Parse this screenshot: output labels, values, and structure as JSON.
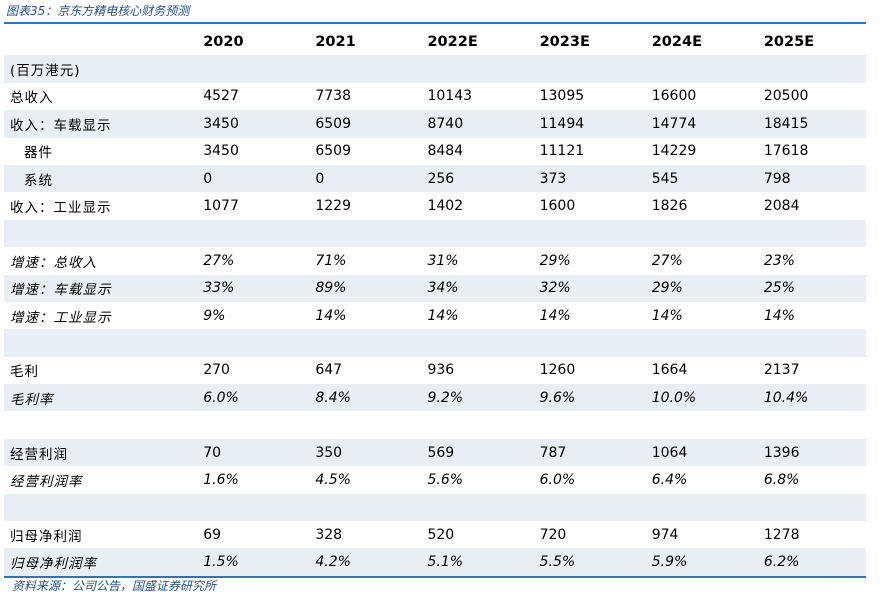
{
  "caption": "图表35：京东方精电核心财务预测",
  "source": "资料来源：公司公告，国盛证券研究所",
  "table": {
    "header": [
      "",
      "2020",
      "2021",
      "2022E",
      "2023E",
      "2024E",
      "2025E"
    ],
    "rows": [
      {
        "label": "(百万港元)",
        "values": [
          "",
          "",
          "",
          "",
          "",
          ""
        ]
      },
      {
        "label": "总收入",
        "values": [
          "4527",
          "7738",
          "10143",
          "13095",
          "16600",
          "20500"
        ]
      },
      {
        "label": "收入：车载显示",
        "values": [
          "3450",
          "6509",
          "8740",
          "11494",
          "14774",
          "18415"
        ]
      },
      {
        "label": "器件",
        "values": [
          "3450",
          "6509",
          "8484",
          "11121",
          "14229",
          "17618"
        ]
      },
      {
        "label": "系统",
        "values": [
          "0",
          "0",
          "256",
          "373",
          "545",
          "798"
        ]
      },
      {
        "label": "收入：工业显示",
        "values": [
          "1077",
          "1229",
          "1402",
          "1600",
          "1826",
          "2084"
        ]
      },
      {
        "label": "",
        "values": [
          "",
          "",
          "",
          "",
          "",
          ""
        ]
      },
      {
        "label": "增速：总收入",
        "values": [
          "27%",
          "71%",
          "31%",
          "29%",
          "27%",
          "23%"
        ]
      },
      {
        "label": "增速：车载显示",
        "values": [
          "33%",
          "89%",
          "34%",
          "32%",
          "29%",
          "25%"
        ]
      },
      {
        "label": "增速：工业显示",
        "values": [
          "9%",
          "14%",
          "14%",
          "14%",
          "14%",
          "14%"
        ]
      },
      {
        "label": "",
        "values": [
          "",
          "",
          "",
          "",
          "",
          ""
        ]
      },
      {
        "label": "毛利",
        "values": [
          "270",
          "647",
          "936",
          "1260",
          "1664",
          "2137"
        ]
      },
      {
        "label": "毛利率",
        "values": [
          "6.0%",
          "8.4%",
          "9.2%",
          "9.6%",
          "10.0%",
          "10.4%"
        ]
      },
      {
        "label": "",
        "values": [
          "",
          "",
          "",
          "",
          "",
          ""
        ]
      },
      {
        "label": "经营利润",
        "values": [
          "70",
          "350",
          "569",
          "787",
          "1064",
          "1396"
        ]
      },
      {
        "label": "经营利润率",
        "values": [
          "1.6%",
          "4.5%",
          "5.6%",
          "6.0%",
          "6.4%",
          "6.8%"
        ]
      },
      {
        "label": "",
        "values": [
          "",
          "",
          "",
          "",
          "",
          ""
        ]
      },
      {
        "label": "归母净利润",
        "values": [
          "69",
          "328",
          "520",
          "720",
          "974",
          "1278"
        ]
      },
      {
        "label": "归母净利润率",
        "values": [
          "1.5%",
          "4.2%",
          "5.1%",
          "5.5%",
          "5.9%",
          "6.2%"
        ]
      }
    ]
  },
  "colors": {
    "accent": "#2e75b6",
    "caption_text": "#1f4e8c",
    "row_shade": "#e9eef4"
  }
}
